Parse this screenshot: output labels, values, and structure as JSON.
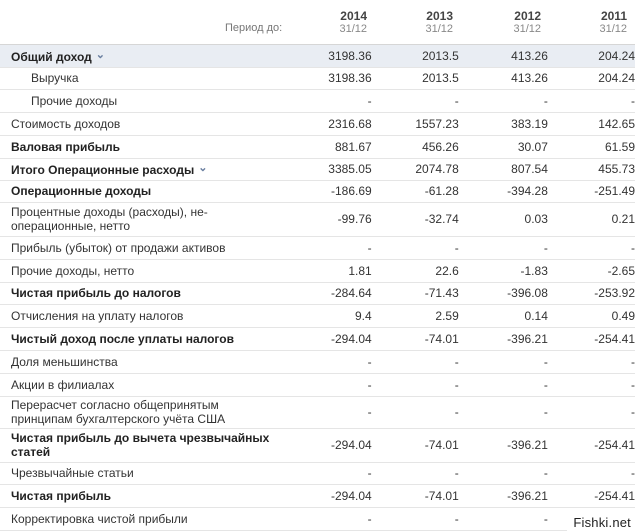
{
  "header": {
    "period_label": "Период до:",
    "years": [
      {
        "year": "2014",
        "date": "31/12"
      },
      {
        "year": "2013",
        "date": "31/12"
      },
      {
        "year": "2012",
        "date": "31/12"
      },
      {
        "year": "2011",
        "date": "31/12"
      }
    ]
  },
  "rows": [
    {
      "label": "Общий доход",
      "values": [
        "3198.36",
        "2013.5",
        "413.26",
        "204.24"
      ],
      "bold": true,
      "highlight": true,
      "expand": true
    },
    {
      "label": "Выручка",
      "values": [
        "3198.36",
        "2013.5",
        "413.26",
        "204.24"
      ],
      "indent": true
    },
    {
      "label": "Прочие доходы",
      "values": [
        "-",
        "-",
        "-",
        "-"
      ],
      "indent": true
    },
    {
      "label": "Стоимость доходов",
      "values": [
        "2316.68",
        "1557.23",
        "383.19",
        "142.65"
      ]
    },
    {
      "label": "Валовая прибыль",
      "values": [
        "881.67",
        "456.26",
        "30.07",
        "61.59"
      ],
      "bold": true
    },
    {
      "label": "Итого Операционные расходы",
      "values": [
        "3385.05",
        "2074.78",
        "807.54",
        "455.73"
      ],
      "bold": true,
      "expand": true
    },
    {
      "label": "Операционные доходы",
      "values": [
        "-186.69",
        "-61.28",
        "-394.28",
        "-251.49"
      ],
      "bold": true
    },
    {
      "label": "Процентные доходы (расходы), не-операционные, нетто",
      "values": [
        "-99.76",
        "-32.74",
        "0.03",
        "0.21"
      ],
      "tall": true
    },
    {
      "label": "Прибыль (убыток) от продажи активов",
      "values": [
        "-",
        "-",
        "-",
        "-"
      ]
    },
    {
      "label": "Прочие доходы, нетто",
      "values": [
        "1.81",
        "22.6",
        "-1.83",
        "-2.65"
      ]
    },
    {
      "label": "Чистая прибыль до налогов",
      "values": [
        "-284.64",
        "-71.43",
        "-396.08",
        "-253.92"
      ],
      "bold": true
    },
    {
      "label": "Отчисления на уплату налогов",
      "values": [
        "9.4",
        "2.59",
        "0.14",
        "0.49"
      ]
    },
    {
      "label": "Чистый доход после уплаты налогов",
      "values": [
        "-294.04",
        "-74.01",
        "-396.21",
        "-254.41"
      ],
      "bold": true
    },
    {
      "label": "Доля меньшинства",
      "values": [
        "-",
        "-",
        "-",
        "-"
      ]
    },
    {
      "label": "Акции в филиалах",
      "values": [
        "-",
        "-",
        "-",
        "-"
      ]
    },
    {
      "label": "Перерасчет согласно общепринятым принципам бухгалтерского учёта США",
      "values": [
        "-",
        "-",
        "-",
        "-"
      ],
      "tall": true
    },
    {
      "label": "Чистая прибыль до вычета чрезвычайных статей",
      "values": [
        "-294.04",
        "-74.01",
        "-396.21",
        "-254.41"
      ],
      "bold": true,
      "tall": true
    },
    {
      "label": "Чрезвычайные статьи",
      "values": [
        "-",
        "-",
        "-",
        "-"
      ]
    },
    {
      "label": "Чистая прибыль",
      "values": [
        "-294.04",
        "-74.01",
        "-396.21",
        "-254.41"
      ],
      "bold": true
    },
    {
      "label": "Корректировка чистой прибыли",
      "values": [
        "-",
        "-",
        "-",
        "-"
      ]
    }
  ],
  "icons": {
    "expand": "chevron-down-icon"
  },
  "watermark": "Fishki.net"
}
